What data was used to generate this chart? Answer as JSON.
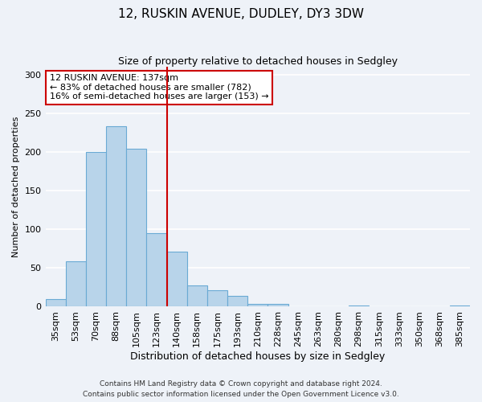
{
  "title": "12, RUSKIN AVENUE, DUDLEY, DY3 3DW",
  "subtitle": "Size of property relative to detached houses in Sedgley",
  "xlabel": "Distribution of detached houses by size in Sedgley",
  "ylabel": "Number of detached properties",
  "bar_labels": [
    "35sqm",
    "53sqm",
    "70sqm",
    "88sqm",
    "105sqm",
    "123sqm",
    "140sqm",
    "158sqm",
    "175sqm",
    "193sqm",
    "210sqm",
    "228sqm",
    "245sqm",
    "263sqm",
    "280sqm",
    "298sqm",
    "315sqm",
    "333sqm",
    "350sqm",
    "368sqm",
    "385sqm"
  ],
  "bar_values": [
    10,
    59,
    200,
    233,
    204,
    95,
    71,
    27,
    21,
    14,
    4,
    4,
    0,
    0,
    0,
    1,
    0,
    0,
    0,
    0,
    1
  ],
  "bar_color": "#b8d4ea",
  "bar_edge_color": "#6aaad4",
  "vline_x_index": 6,
  "vline_color": "#cc0000",
  "annotation_text": "12 RUSKIN AVENUE: 137sqm\n← 83% of detached houses are smaller (782)\n16% of semi-detached houses are larger (153) →",
  "annotation_box_facecolor": "#ffffff",
  "annotation_box_edgecolor": "#cc0000",
  "ylim": [
    0,
    310
  ],
  "yticks": [
    0,
    50,
    100,
    150,
    200,
    250,
    300
  ],
  "footer_line1": "Contains HM Land Registry data © Crown copyright and database right 2024.",
  "footer_line2": "Contains public sector information licensed under the Open Government Licence v3.0.",
  "background_color": "#eef2f8",
  "plot_background": "#eef2f8",
  "grid_color": "#ffffff",
  "title_fontsize": 11,
  "subtitle_fontsize": 9,
  "xlabel_fontsize": 9,
  "ylabel_fontsize": 8,
  "tick_fontsize": 8,
  "annotation_fontsize": 8,
  "footer_fontsize": 6.5
}
